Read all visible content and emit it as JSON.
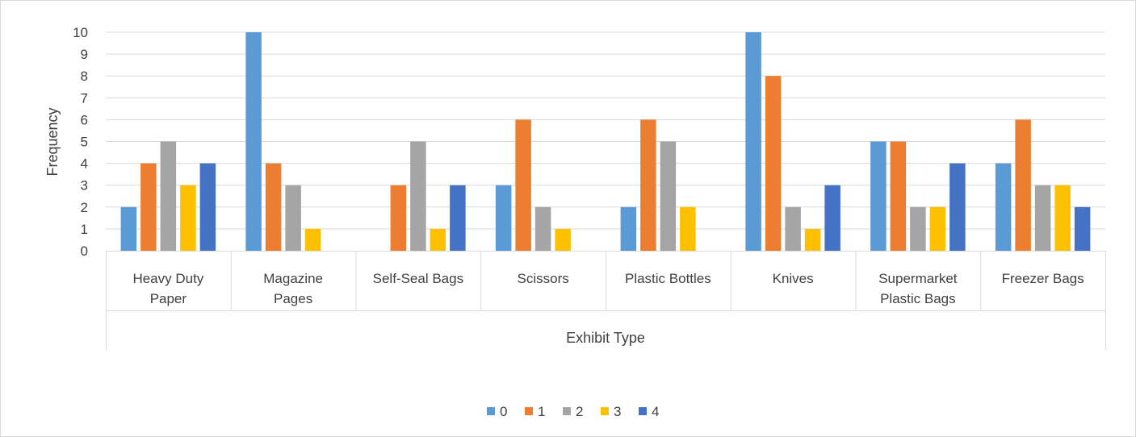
{
  "chart_data": {
    "type": "bar",
    "title": "",
    "xlabel": "Exhibit Type",
    "ylabel": "Frequency",
    "ylim": [
      0,
      10
    ],
    "yticks": [
      0,
      1,
      2,
      3,
      4,
      5,
      6,
      7,
      8,
      9,
      10
    ],
    "grid": true,
    "legend_position": "bottom",
    "categories": [
      [
        "Heavy Duty",
        "Paper"
      ],
      [
        "Magazine",
        "Pages"
      ],
      [
        "Self-Seal Bags"
      ],
      [
        "Scissors"
      ],
      [
        "Plastic Bottles"
      ],
      [
        "Knives"
      ],
      [
        "Supermarket",
        "Plastic Bags"
      ],
      [
        "Freezer Bags"
      ]
    ],
    "series": [
      {
        "name": "0",
        "color": "#5b9bd5",
        "values": [
          2,
          10,
          0,
          3,
          2,
          10,
          5,
          4
        ]
      },
      {
        "name": "1",
        "color": "#ed7d31",
        "values": [
          4,
          4,
          3,
          6,
          6,
          8,
          5,
          6
        ]
      },
      {
        "name": "2",
        "color": "#a5a5a5",
        "values": [
          5,
          3,
          5,
          2,
          5,
          2,
          2,
          3
        ]
      },
      {
        "name": "3",
        "color": "#ffc000",
        "values": [
          3,
          1,
          1,
          1,
          2,
          1,
          2,
          3
        ]
      },
      {
        "name": "4",
        "color": "#4472c4",
        "values": [
          4,
          0,
          3,
          0,
          0,
          3,
          4,
          2
        ]
      }
    ]
  }
}
